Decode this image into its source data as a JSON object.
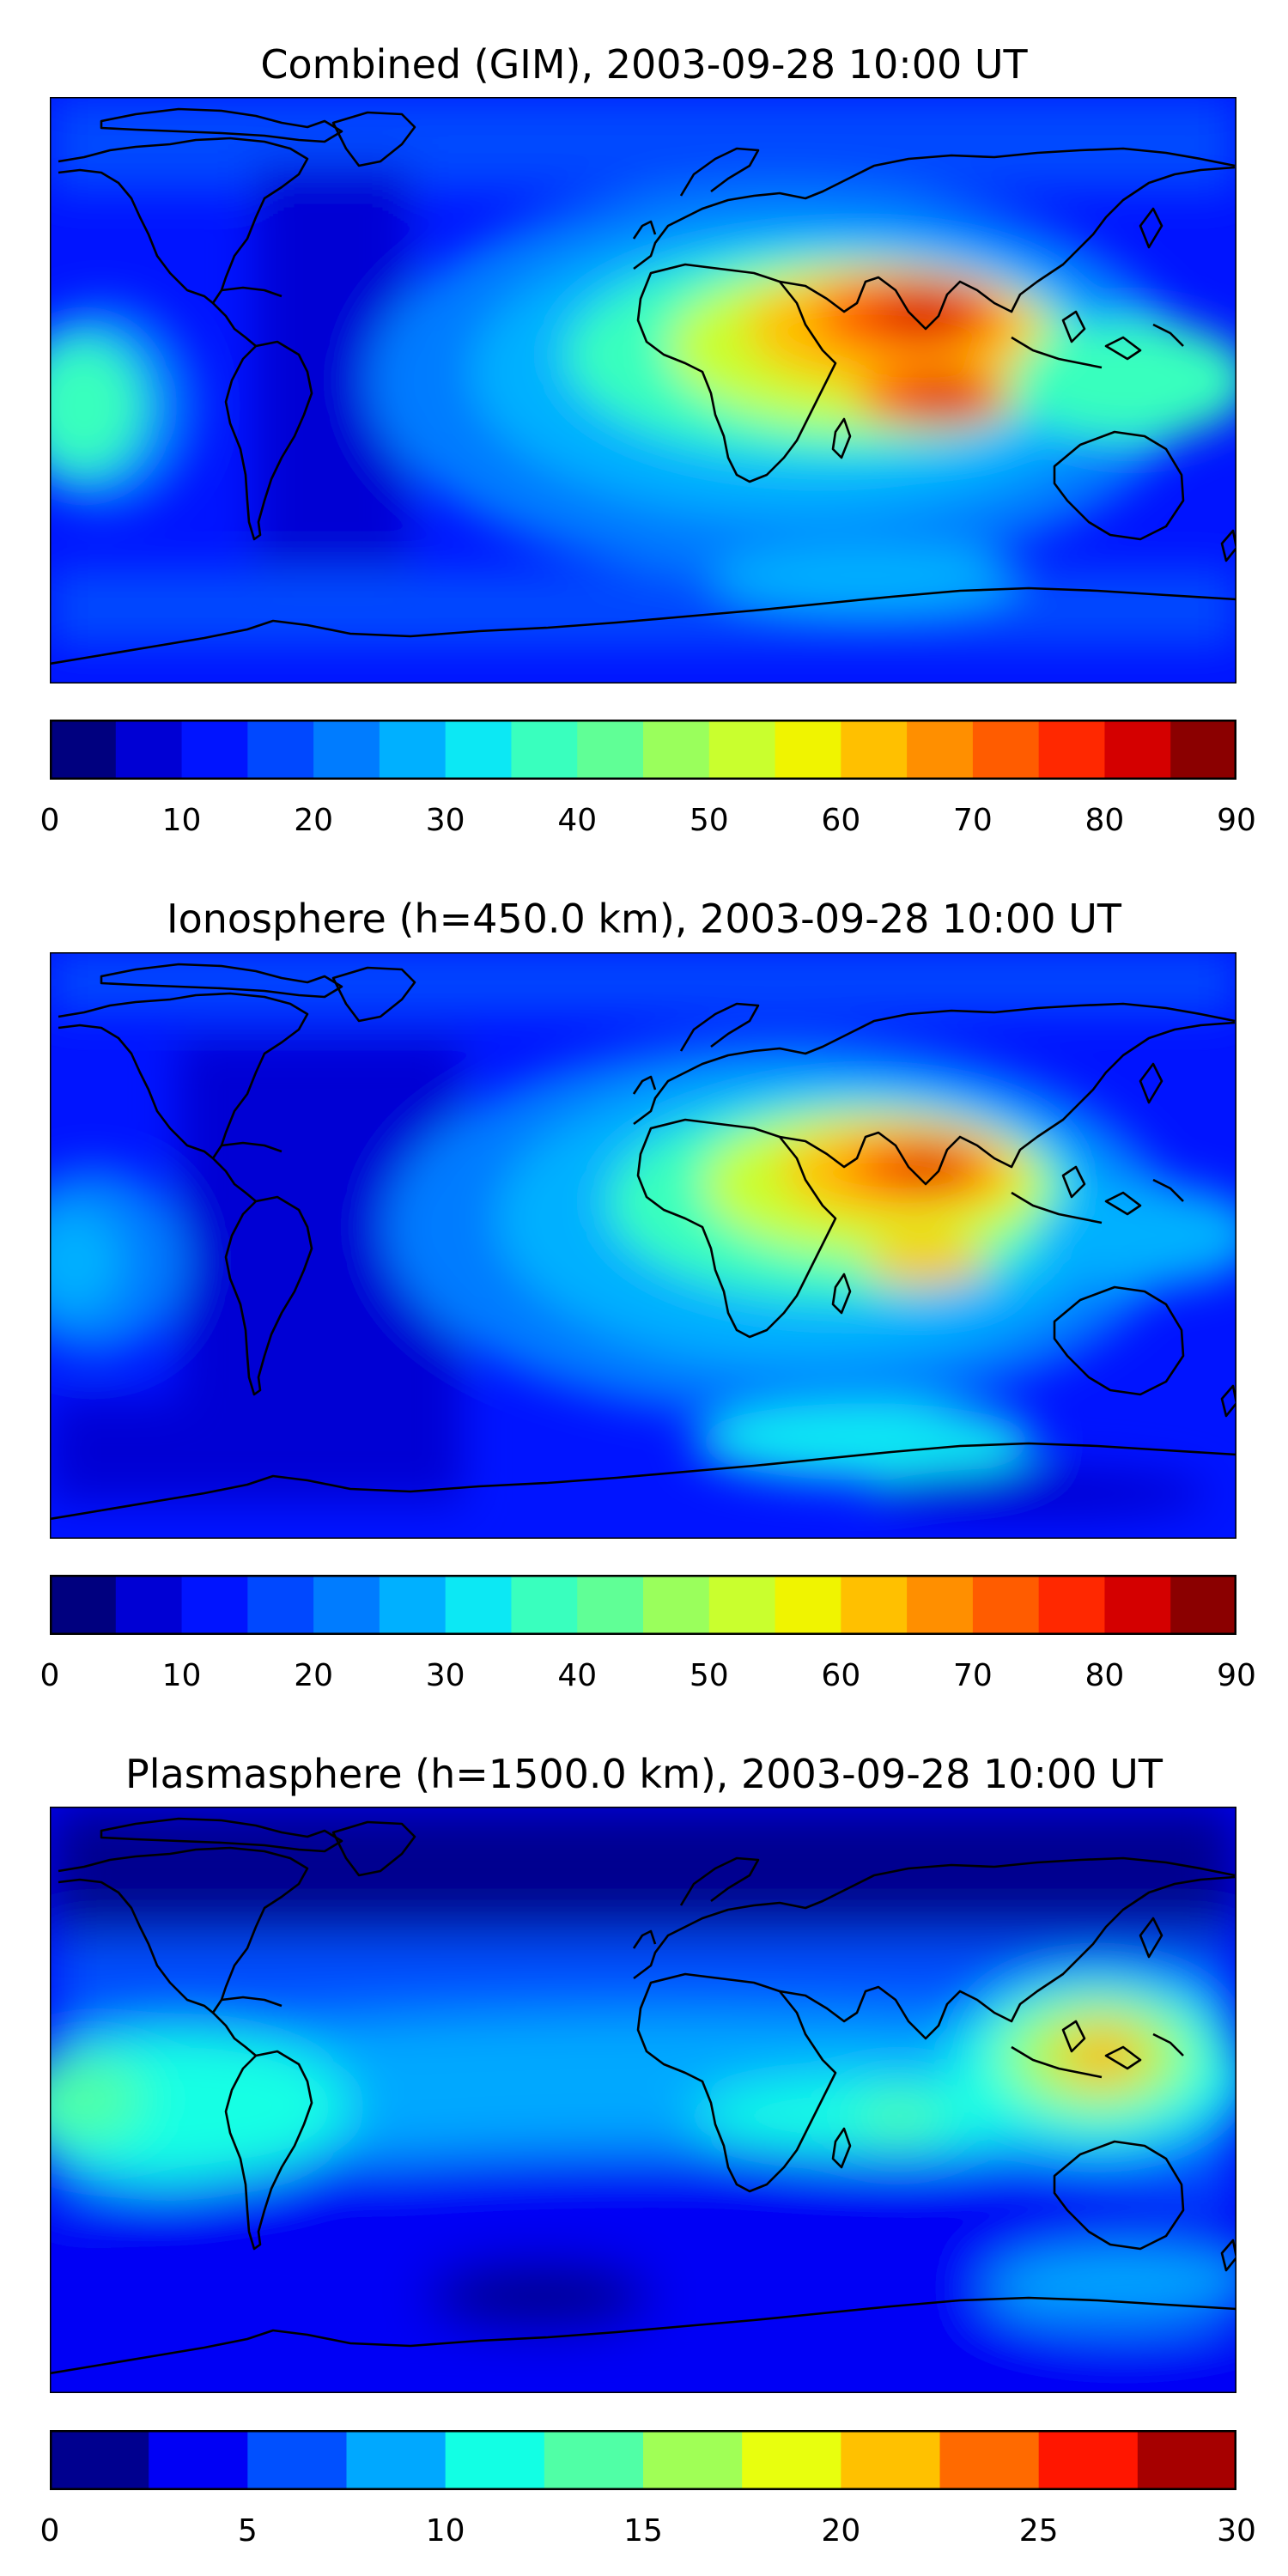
{
  "panels": [
    {
      "title": "Combined (GIM), 2003-09-28 10:00 UT",
      "colorbar": {
        "ticks": [
          "0",
          "10",
          "20",
          "30",
          "40",
          "50",
          "60",
          "70",
          "80",
          "90"
        ],
        "min": 0,
        "max": 90,
        "levels": 18,
        "colors": [
          "#00007f",
          "#0000d4",
          "#0014ff",
          "#0048ff",
          "#007cff",
          "#00b0ff",
          "#0ce8f4",
          "#39ffbe",
          "#60ff96",
          "#9aff5c",
          "#c9ff2e",
          "#f0f400",
          "#ffc000",
          "#ff8f00",
          "#ff5c00",
          "#ff2800",
          "#d40000",
          "#8b0000"
        ]
      }
    },
    {
      "title": "Ionosphere  (h=450.0 km), 2003-09-28 10:00 UT",
      "colorbar": {
        "ticks": [
          "0",
          "10",
          "20",
          "30",
          "40",
          "50",
          "60",
          "70",
          "80",
          "90"
        ],
        "min": 0,
        "max": 90,
        "levels": 18,
        "colors": [
          "#00007f",
          "#0000d4",
          "#0014ff",
          "#0048ff",
          "#007cff",
          "#00b0ff",
          "#0ce8f4",
          "#39ffbe",
          "#60ff96",
          "#9aff5c",
          "#c9ff2e",
          "#f0f400",
          "#ffc000",
          "#ff8f00",
          "#ff5c00",
          "#ff2800",
          "#d40000",
          "#8b0000"
        ]
      }
    },
    {
      "title": "Plasmasphere (h=1500.0 km), 2003-09-28 10:00 UT",
      "colorbar": {
        "ticks": [
          "0",
          "5",
          "10",
          "15",
          "20",
          "25",
          "30"
        ],
        "min": 0,
        "max": 30,
        "levels": 12,
        "colors": [
          "#00008f",
          "#0000f5",
          "#0050ff",
          "#00a8ff",
          "#12ffe4",
          "#50ffa6",
          "#a0ff56",
          "#e8ff0e",
          "#ffc100",
          "#ff6a00",
          "#ff1600",
          "#a60000"
        ]
      }
    }
  ]
}
